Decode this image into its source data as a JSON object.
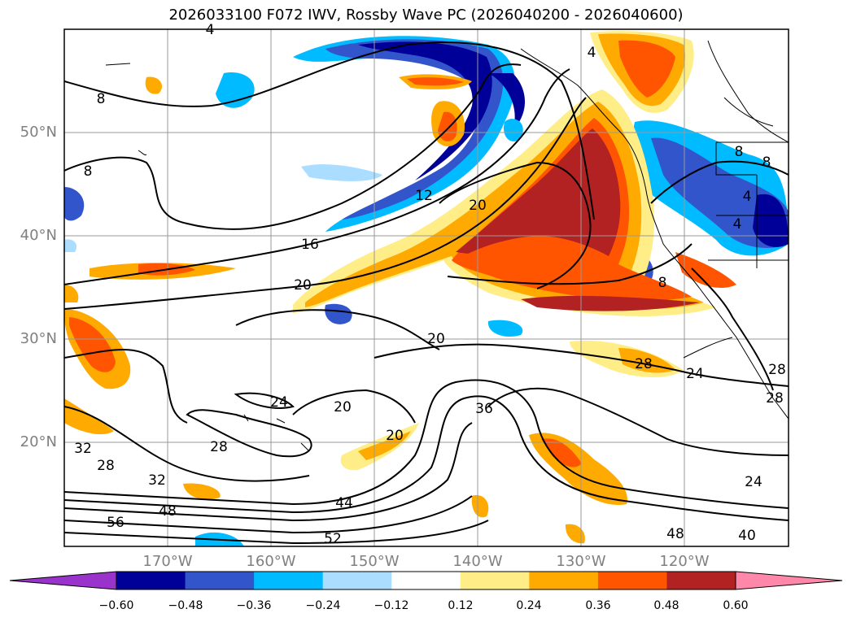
{
  "title": "2026033100 F072 IWV, Rossby Wave PC (2026040200 - 2026040600)",
  "lat_labels": [
    "50°N",
    "40°N",
    "30°N",
    "20°N"
  ],
  "lon_labels": [
    "170°W",
    "160°W",
    "150°W",
    "140°W",
    "130°W",
    "120°W"
  ],
  "colorbar": {
    "labels": [
      "−0.60",
      "−0.48",
      "−0.36",
      "−0.24",
      "−0.12",
      "0.12",
      "0.24",
      "0.36",
      "0.48",
      "0.60"
    ],
    "colors": [
      "#9933cc",
      "#000099",
      "#3355cc",
      "#00bbff",
      "#aaddff",
      "#ffffff",
      "#ffee88",
      "#ffaa00",
      "#ff5500",
      "#b22222",
      "#ff88aa"
    ]
  },
  "contour_labels": [
    "4",
    "4",
    "8",
    "8",
    "8",
    "12",
    "16",
    "20",
    "20",
    "20",
    "20",
    "20",
    "24",
    "24",
    "24",
    "28",
    "28",
    "28",
    "32",
    "32",
    "36",
    "44",
    "48",
    "48",
    "52",
    "56",
    "40",
    "4",
    "4",
    "28",
    "8",
    "8",
    "28"
  ]
}
